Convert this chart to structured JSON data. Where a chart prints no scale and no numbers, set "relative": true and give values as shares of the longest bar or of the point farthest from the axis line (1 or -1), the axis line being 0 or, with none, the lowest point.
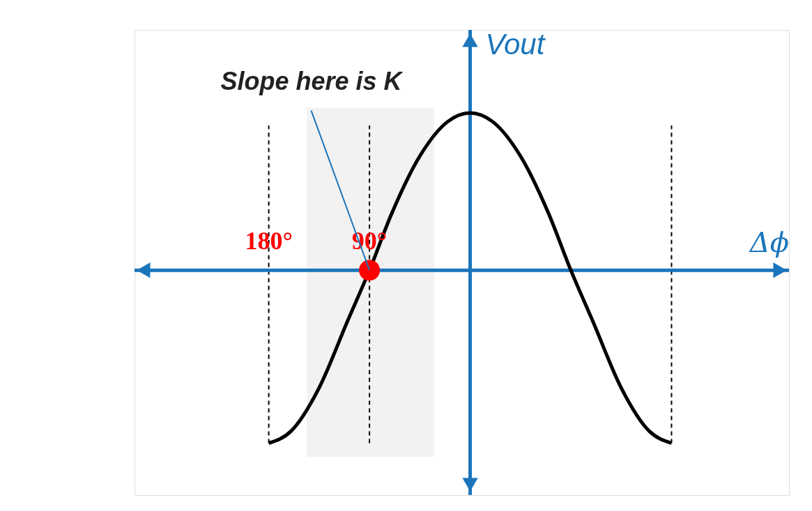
{
  "chart_data": {
    "type": "line",
    "relative": true,
    "xlabel": "Δϕ",
    "ylabel": "Vout",
    "xlim": [
      -300,
      285
    ],
    "xticks": [
      {
        "value": -180,
        "label": "180°"
      },
      {
        "value": -90,
        "label": "90°"
      }
    ],
    "series": [
      {
        "color": "#000000",
        "x": [
          -180,
          -160,
          -135,
          -110,
          -90,
          -70,
          -45,
          -20,
          0,
          20,
          45,
          70,
          90,
          110,
          135,
          160,
          180
        ],
        "values": [
          -1,
          -0.93,
          -0.68,
          -0.3,
          0,
          0.33,
          0.66,
          0.86,
          0.91,
          0.86,
          0.66,
          0.33,
          0,
          -0.3,
          -0.68,
          -0.93,
          -1
        ]
      },
      {
        "type": "scatter",
        "color": "#ff0000",
        "x": [
          -90
        ],
        "values": [
          0
        ]
      }
    ],
    "ref_lines": [
      {
        "axis": "x",
        "value": -180,
        "color": "#000000",
        "line_style": "dashed"
      },
      {
        "axis": "x",
        "value": -90,
        "color": "#000000",
        "line_style": "dashed"
      },
      {
        "axis": "x",
        "value": 180,
        "color": "#000000",
        "line_style": "dashed"
      },
      {
        "axis": "x",
        "value": 0,
        "color": "#1b75bb",
        "line_style": "solid"
      }
    ],
    "bands": [
      {
        "axis": "x",
        "from": -146,
        "to": -32,
        "color": "#f2f2f2"
      }
    ],
    "annotations": [
      {
        "text": "Slope here is K",
        "x": -90,
        "y": 0
      }
    ],
    "grid": false,
    "line_style": "solid"
  }
}
